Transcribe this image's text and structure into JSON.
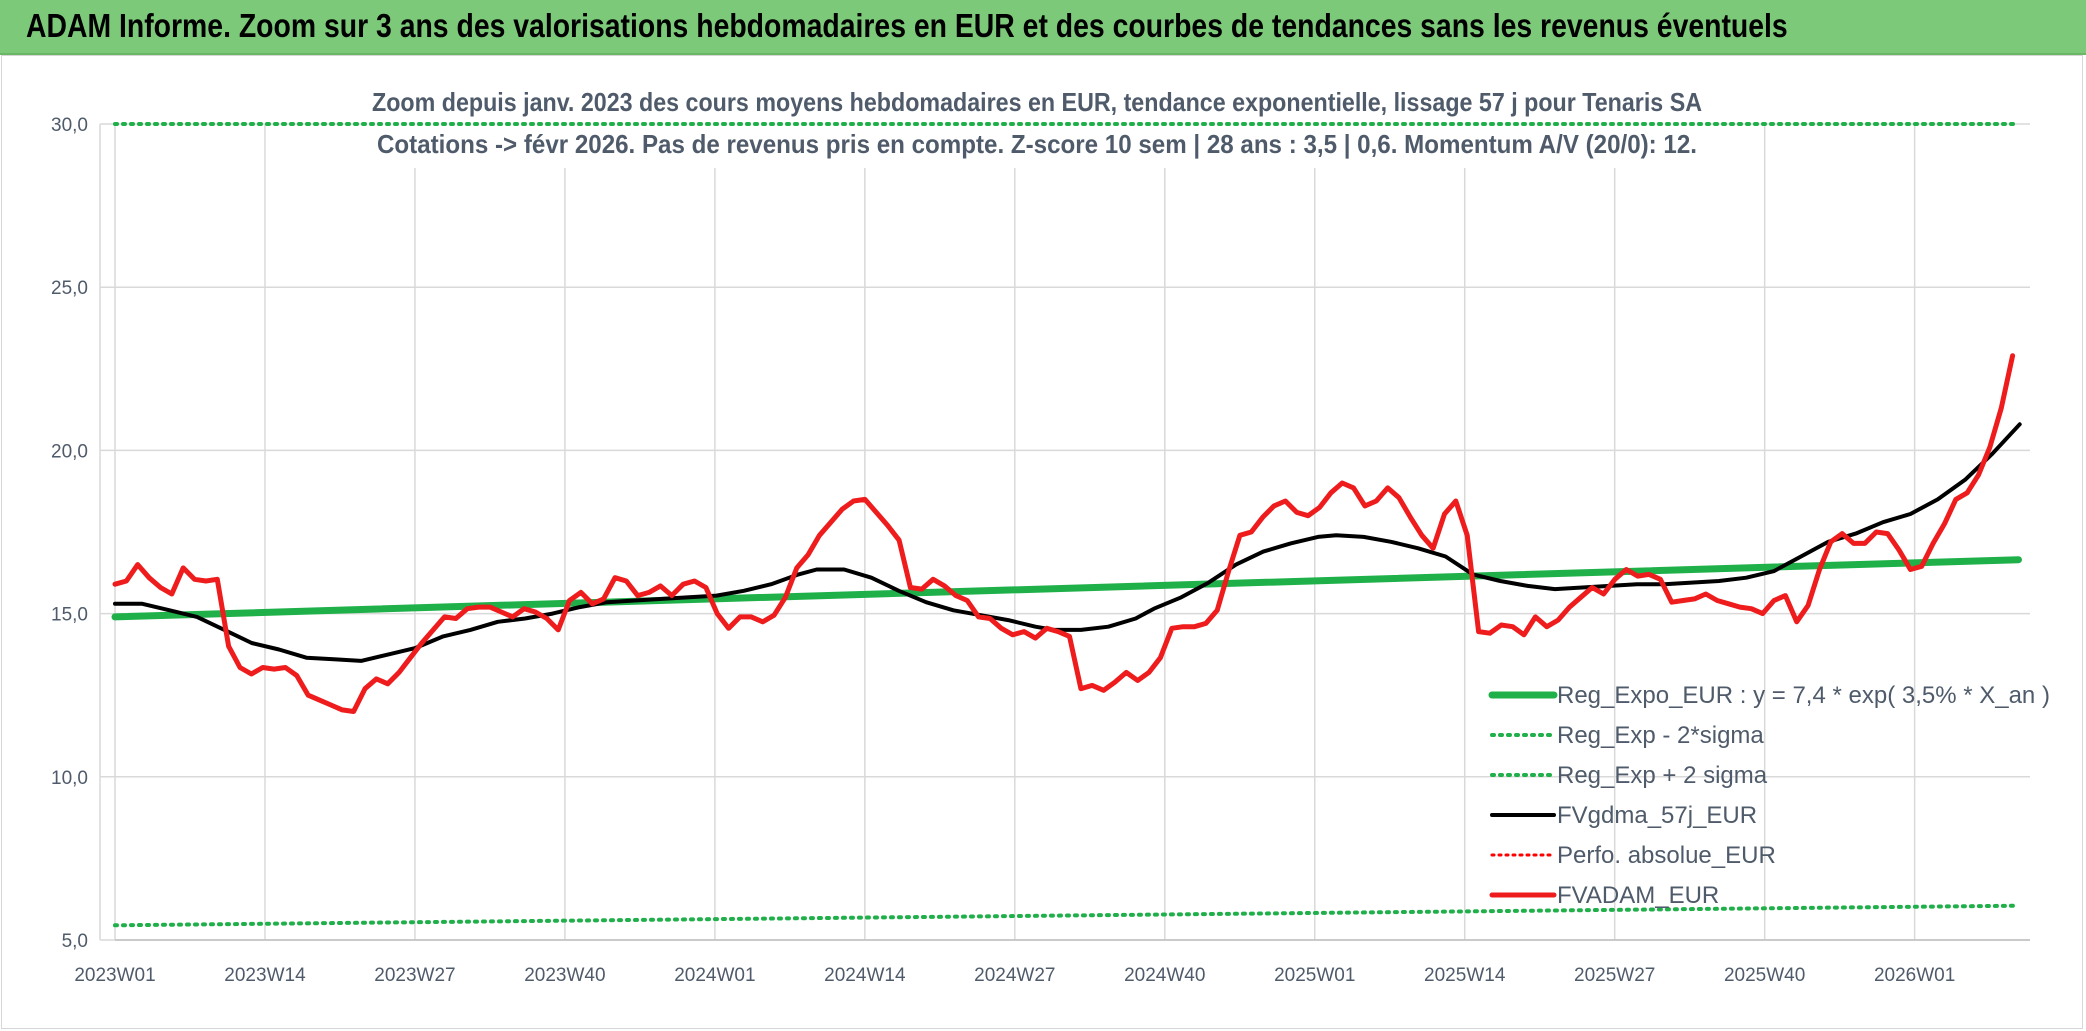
{
  "header": {
    "title": "ADAM Informe. Zoom sur 3 ans des valorisations hebdomadaires en EUR et des courbes de tendances sans les revenus éventuels"
  },
  "colors": {
    "header_bg": "#7dc97a",
    "reg_expo": "#1fb04a",
    "sigma": "#1fb04a",
    "fvgdma": "#000000",
    "perfo": "#ff0000",
    "fvadam": "#ee1c1c",
    "grid": "#d9d9d9",
    "text": "#4f5b6a"
  },
  "chart_data": {
    "type": "line",
    "title": "Zoom depuis janv. 2023 des cours moyens hebdomadaires en EUR, tendance exponentielle, lissage 57 j pour Tenaris SA",
    "subtitle": "Cotations -> févr 2026. Pas de revenus pris en compte. Z-score 10 sem | 28 ans : 3,5 | 0,6. Momentum A/V (20/0): 12.",
    "xlabel": "",
    "ylabel": "",
    "ylim": [
      5,
      30
    ],
    "yticks": [
      "5,0",
      "10,0",
      "15,0",
      "20,0",
      "25,0",
      "30,0"
    ],
    "ytick_values": [
      5,
      10,
      15,
      20,
      25,
      30
    ],
    "xticks": [
      "2023W01",
      "2023W14",
      "2023W27",
      "2023W40",
      "2024W01",
      "2024W14",
      "2024W27",
      "2024W40",
      "2025W01",
      "2025W14",
      "2025W27",
      "2025W40",
      "2026W01"
    ],
    "xtick_index": [
      0,
      13,
      26,
      39,
      52,
      65,
      78,
      91,
      104,
      117,
      130,
      143,
      156
    ],
    "n_weeks": 166,
    "grid": true,
    "legend_position": "bottom-right",
    "series": [
      {
        "name": "Reg_Expo_EUR : y = 7,4 * exp( 3,5% *  X_an )",
        "style": "solid-thick",
        "points": [
          [
            0,
            14.9
          ],
          [
            165,
            16.65
          ]
        ]
      },
      {
        "name": "Reg_Exp - 2*sigma",
        "style": "dotted",
        "points": [
          [
            0,
            5.45
          ],
          [
            165,
            6.05
          ]
        ]
      },
      {
        "name": "Reg_Exp + 2 sigma",
        "style": "dotted",
        "points": [
          [
            0,
            30.0
          ],
          [
            165,
            30.0
          ]
        ]
      },
      {
        "name": "FVgdma_57j_EUR",
        "style": "solid",
        "points": [
          [
            0,
            15.3
          ],
          [
            3,
            15.3
          ],
          [
            6,
            15.1
          ],
          [
            9,
            14.9
          ],
          [
            12,
            14.5
          ],
          [
            15,
            14.1
          ],
          [
            18,
            13.9
          ],
          [
            21,
            13.65
          ],
          [
            24,
            13.6
          ],
          [
            27,
            13.55
          ],
          [
            30,
            13.75
          ],
          [
            33,
            13.95
          ],
          [
            36,
            14.3
          ],
          [
            39,
            14.5
          ],
          [
            42,
            14.75
          ],
          [
            45,
            14.85
          ],
          [
            48,
            15.0
          ],
          [
            51,
            15.2
          ],
          [
            54,
            15.35
          ],
          [
            57,
            15.4
          ],
          [
            60,
            15.45
          ],
          [
            63,
            15.5
          ],
          [
            66,
            15.55
          ],
          [
            69,
            15.7
          ],
          [
            72,
            15.9
          ],
          [
            75,
            16.2
          ],
          [
            77,
            16.35
          ],
          [
            80,
            16.35
          ],
          [
            83,
            16.1
          ],
          [
            86,
            15.7
          ],
          [
            89,
            15.35
          ],
          [
            92,
            15.1
          ],
          [
            95,
            14.95
          ],
          [
            98,
            14.8
          ],
          [
            101,
            14.6
          ],
          [
            103,
            14.5
          ],
          [
            106,
            14.5
          ],
          [
            109,
            14.6
          ],
          [
            112,
            14.85
          ],
          [
            114,
            15.15
          ],
          [
            117,
            15.5
          ],
          [
            120,
            15.95
          ],
          [
            123,
            16.5
          ],
          [
            126,
            16.9
          ],
          [
            129,
            17.15
          ],
          [
            132,
            17.35
          ],
          [
            134,
            17.4
          ],
          [
            137,
            17.35
          ],
          [
            140,
            17.2
          ],
          [
            143,
            17.0
          ],
          [
            146,
            16.75
          ],
          [
            149,
            16.2
          ],
          [
            152,
            16.0
          ],
          [
            155,
            15.85
          ],
          [
            158,
            15.75
          ],
          [
            161,
            15.8
          ],
          [
            164,
            15.85
          ],
          [
            167,
            15.9
          ],
          [
            170,
            15.9
          ],
          [
            173,
            15.95
          ],
          [
            176,
            16.0
          ],
          [
            179,
            16.1
          ],
          [
            182,
            16.3
          ],
          [
            185,
            16.75
          ],
          [
            188,
            17.2
          ],
          [
            191,
            17.45
          ],
          [
            194,
            17.8
          ],
          [
            197,
            18.05
          ],
          [
            200,
            18.5
          ],
          [
            203,
            19.1
          ],
          [
            206,
            19.9
          ],
          [
            209,
            20.8
          ]
        ],
        "x_scale": 0.79
      },
      {
        "name": "Perfo. absolue_EUR",
        "style": "dotted",
        "points": []
      },
      {
        "name": "FVADAM_EUR",
        "style": "solid-thick",
        "points": [
          [
            0,
            15.9
          ],
          [
            1,
            16.0
          ],
          [
            2,
            16.5
          ],
          [
            3,
            16.1
          ],
          [
            4,
            15.8
          ],
          [
            5,
            15.6
          ],
          [
            6,
            16.4
          ],
          [
            7,
            16.05
          ],
          [
            8,
            16.0
          ],
          [
            9,
            16.05
          ],
          [
            10,
            14.0
          ],
          [
            11,
            13.35
          ],
          [
            12,
            13.15
          ],
          [
            13,
            13.35
          ],
          [
            14,
            13.3
          ],
          [
            15,
            13.35
          ],
          [
            16,
            13.1
          ],
          [
            17,
            12.5
          ],
          [
            18,
            12.35
          ],
          [
            19,
            12.2
          ],
          [
            20,
            12.05
          ],
          [
            21,
            12.0
          ],
          [
            22,
            12.7
          ],
          [
            23,
            13.0
          ],
          [
            24,
            12.85
          ],
          [
            25,
            13.2
          ],
          [
            26,
            13.65
          ],
          [
            27,
            14.1
          ],
          [
            28,
            14.5
          ],
          [
            29,
            14.9
          ],
          [
            30,
            14.85
          ],
          [
            31,
            15.15
          ],
          [
            32,
            15.2
          ],
          [
            33,
            15.2
          ],
          [
            34,
            15.05
          ],
          [
            35,
            14.9
          ],
          [
            36,
            15.15
          ],
          [
            37,
            15.05
          ],
          [
            38,
            14.85
          ],
          [
            39,
            14.5
          ],
          [
            40,
            15.4
          ],
          [
            41,
            15.65
          ],
          [
            42,
            15.3
          ],
          [
            43,
            15.45
          ],
          [
            44,
            16.1
          ],
          [
            45,
            16.0
          ],
          [
            46,
            15.55
          ],
          [
            47,
            15.65
          ],
          [
            48,
            15.85
          ],
          [
            49,
            15.55
          ],
          [
            50,
            15.9
          ],
          [
            51,
            16.0
          ],
          [
            52,
            15.8
          ],
          [
            53,
            15.0
          ],
          [
            54,
            14.55
          ],
          [
            55,
            14.9
          ],
          [
            56,
            14.9
          ],
          [
            57,
            14.75
          ],
          [
            58,
            14.95
          ],
          [
            59,
            15.5
          ],
          [
            60,
            16.4
          ],
          [
            61,
            16.8
          ],
          [
            62,
            17.4
          ],
          [
            63,
            17.8
          ],
          [
            64,
            18.2
          ],
          [
            65,
            18.45
          ],
          [
            66,
            18.5
          ],
          [
            67,
            18.1
          ],
          [
            68,
            17.7
          ],
          [
            69,
            17.25
          ],
          [
            70,
            15.8
          ],
          [
            71,
            15.75
          ],
          [
            72,
            16.05
          ],
          [
            73,
            15.85
          ],
          [
            74,
            15.55
          ],
          [
            75,
            15.4
          ],
          [
            76,
            14.9
          ],
          [
            77,
            14.85
          ],
          [
            78,
            14.55
          ],
          [
            79,
            14.35
          ],
          [
            80,
            14.45
          ],
          [
            81,
            14.25
          ],
          [
            82,
            14.55
          ],
          [
            83,
            14.45
          ],
          [
            84,
            14.3
          ],
          [
            85,
            12.7
          ],
          [
            86,
            12.8
          ],
          [
            87,
            12.65
          ],
          [
            88,
            12.9
          ],
          [
            89,
            13.2
          ],
          [
            90,
            12.95
          ],
          [
            91,
            13.2
          ],
          [
            92,
            13.65
          ],
          [
            93,
            14.55
          ],
          [
            94,
            14.6
          ],
          [
            95,
            14.6
          ],
          [
            96,
            14.7
          ],
          [
            97,
            15.1
          ],
          [
            98,
            16.3
          ],
          [
            99,
            17.4
          ],
          [
            100,
            17.5
          ],
          [
            101,
            17.95
          ],
          [
            102,
            18.3
          ],
          [
            103,
            18.45
          ],
          [
            104,
            18.1
          ],
          [
            105,
            18.0
          ],
          [
            106,
            18.25
          ],
          [
            107,
            18.7
          ],
          [
            108,
            19.0
          ],
          [
            109,
            18.85
          ],
          [
            110,
            18.3
          ],
          [
            111,
            18.45
          ],
          [
            112,
            18.85
          ],
          [
            113,
            18.55
          ],
          [
            114,
            17.95
          ],
          [
            115,
            17.4
          ],
          [
            116,
            17.0
          ],
          [
            117,
            18.05
          ],
          [
            118,
            18.45
          ],
          [
            119,
            17.4
          ],
          [
            120,
            14.45
          ],
          [
            121,
            14.4
          ],
          [
            122,
            14.65
          ],
          [
            123,
            14.6
          ],
          [
            124,
            14.35
          ],
          [
            125,
            14.9
          ],
          [
            126,
            14.6
          ],
          [
            127,
            14.8
          ],
          [
            128,
            15.2
          ],
          [
            129,
            15.5
          ],
          [
            130,
            15.8
          ],
          [
            131,
            15.6
          ],
          [
            132,
            16.05
          ],
          [
            133,
            16.35
          ],
          [
            134,
            16.15
          ],
          [
            135,
            16.2
          ],
          [
            136,
            16.05
          ],
          [
            137,
            15.35
          ],
          [
            138,
            15.4
          ],
          [
            139,
            15.45
          ],
          [
            140,
            15.6
          ],
          [
            141,
            15.4
          ],
          [
            142,
            15.3
          ],
          [
            143,
            15.2
          ],
          [
            144,
            15.15
          ],
          [
            145,
            15.0
          ],
          [
            146,
            15.4
          ],
          [
            147,
            15.55
          ],
          [
            148,
            14.75
          ],
          [
            149,
            15.25
          ],
          [
            150,
            16.35
          ],
          [
            151,
            17.2
          ],
          [
            152,
            17.45
          ],
          [
            153,
            17.15
          ],
          [
            154,
            17.15
          ],
          [
            155,
            17.5
          ],
          [
            156,
            17.45
          ],
          [
            157,
            16.95
          ],
          [
            158,
            16.35
          ],
          [
            159,
            16.45
          ],
          [
            160,
            17.15
          ],
          [
            161,
            17.75
          ],
          [
            162,
            18.5
          ],
          [
            163,
            18.7
          ],
          [
            164,
            19.25
          ],
          [
            165,
            20.1
          ],
          [
            166,
            21.3
          ],
          [
            167,
            22.9
          ]
        ],
        "x_scale": 0.985
      }
    ]
  }
}
